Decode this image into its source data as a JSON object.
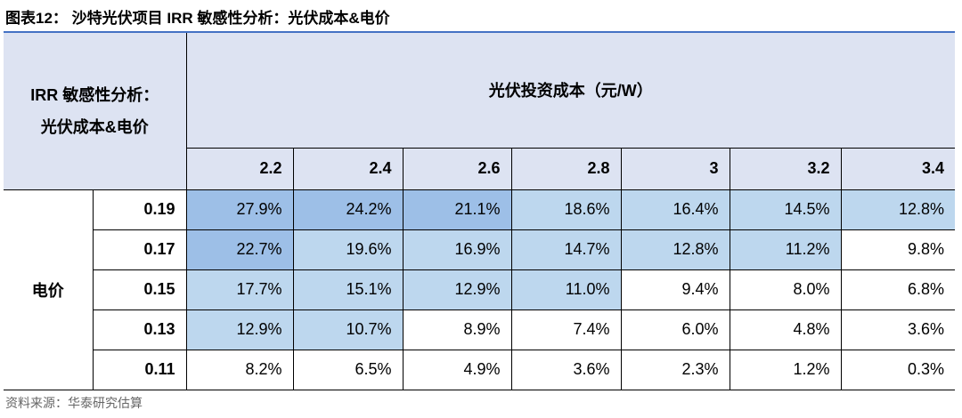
{
  "title": "图表12： 沙特光伏项目 IRR 敏感性分析：光伏成本&电价",
  "table": {
    "corner": [
      "IRR 敏感性分析：",
      "光伏成本&电价"
    ],
    "column_group": "光伏投资成本（元/W）",
    "columns": [
      "2.2",
      "2.4",
      "2.6",
      "2.8",
      "3",
      "3.2",
      "3.4"
    ],
    "row_group": "电价",
    "rows": [
      {
        "label": "0.19",
        "cells": [
          "27.9%",
          "24.2%",
          "21.1%",
          "18.6%",
          "16.4%",
          "14.5%",
          "12.8%"
        ],
        "colors": [
          "#9dbfe7",
          "#9dbfe7",
          "#9dbfe7",
          "#bdd7ee",
          "#bdd7ee",
          "#bdd7ee",
          "#bdd7ee"
        ]
      },
      {
        "label": "0.17",
        "cells": [
          "22.7%",
          "19.6%",
          "16.9%",
          "14.7%",
          "12.8%",
          "11.2%",
          "9.8%"
        ],
        "colors": [
          "#9dbfe7",
          "#bdd7ee",
          "#bdd7ee",
          "#bdd7ee",
          "#bdd7ee",
          "#bdd7ee",
          "#ffffff"
        ]
      },
      {
        "label": "0.15",
        "cells": [
          "17.7%",
          "15.1%",
          "12.9%",
          "11.0%",
          "9.4%",
          "8.0%",
          "6.8%"
        ],
        "colors": [
          "#bdd7ee",
          "#bdd7ee",
          "#bdd7ee",
          "#bdd7ee",
          "#ffffff",
          "#ffffff",
          "#ffffff"
        ]
      },
      {
        "label": "0.13",
        "cells": [
          "12.9%",
          "10.7%",
          "8.9%",
          "7.4%",
          "6.0%",
          "4.8%",
          "3.6%"
        ],
        "colors": [
          "#bdd7ee",
          "#bdd7ee",
          "#ffffff",
          "#ffffff",
          "#ffffff",
          "#ffffff",
          "#ffffff"
        ]
      },
      {
        "label": "0.11",
        "cells": [
          "8.2%",
          "6.5%",
          "4.9%",
          "3.6%",
          "2.3%",
          "1.2%",
          "0.3%"
        ],
        "colors": [
          "#ffffff",
          "#ffffff",
          "#ffffff",
          "#ffffff",
          "#ffffff",
          "#ffffff",
          "#ffffff"
        ]
      }
    ]
  },
  "source": "资料来源：华泰研究估算"
}
